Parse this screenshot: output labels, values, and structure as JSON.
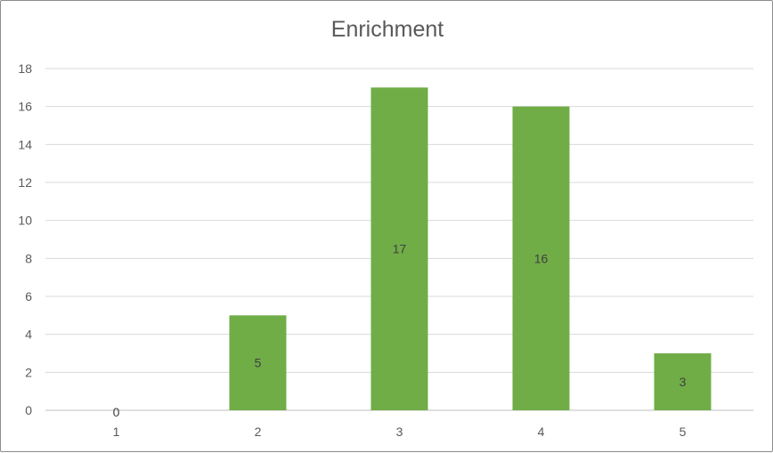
{
  "chart_data": {
    "type": "bar",
    "title": "Enrichment",
    "categories": [
      "1",
      "2",
      "3",
      "4",
      "5"
    ],
    "values": [
      0,
      5,
      17,
      16,
      3
    ],
    "data_labels": [
      "0",
      "5",
      "17",
      "16",
      "3"
    ],
    "xlabel": "",
    "ylabel": "",
    "ylim": [
      0,
      18
    ],
    "yticks": [
      "0",
      "2",
      "4",
      "6",
      "8",
      "10",
      "12",
      "14",
      "16",
      "18"
    ],
    "grid": true,
    "legend": "none",
    "bar_color": "#70AD47",
    "gridline_color": "#D9D9D9",
    "text_color": "#595959"
  }
}
